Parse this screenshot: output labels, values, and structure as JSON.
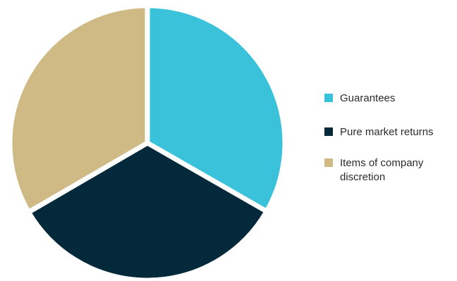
{
  "chart_data": {
    "type": "pie",
    "title": "",
    "categories": [
      "Guarantees",
      "Pure market returns",
      "Items of company discretion"
    ],
    "values": [
      33.3,
      33.3,
      33.4
    ],
    "colors": [
      "#3ac2db",
      "#04293a",
      "#cfba86"
    ],
    "start_angle_deg": 0,
    "direction": "clockwise",
    "legend_position": "right",
    "data_labels": false
  },
  "legend": {
    "items": [
      {
        "label": "Guarantees",
        "color": "#3ac2db"
      },
      {
        "label": "Pure market returns",
        "color": "#04293a"
      },
      {
        "label": "Items of company discretion",
        "color": "#cfba86"
      }
    ]
  }
}
